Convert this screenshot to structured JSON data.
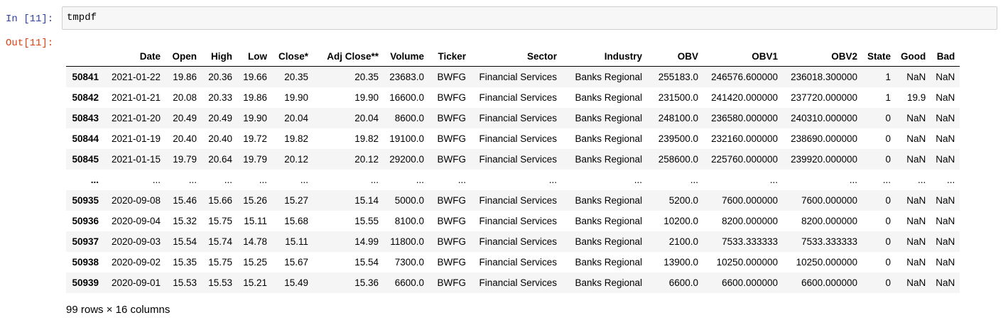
{
  "cell": {
    "in_prompt": "In [11]:",
    "out_prompt": "Out[11]:",
    "code": "tmpdf"
  },
  "dataframe": {
    "columns": [
      "",
      "Date",
      "Open",
      "High",
      "Low",
      "Close*",
      "Adj Close**",
      "Volume",
      "Ticker",
      "Sector",
      "Industry",
      "OBV",
      "OBV1",
      "OBV2",
      "State",
      "Good",
      "Bad"
    ],
    "rows": [
      [
        "50841",
        "2021-01-22",
        "19.86",
        "20.36",
        "19.66",
        "20.35",
        "20.35",
        "23683.0",
        "BWFG",
        "Financial Services",
        "Banks Regional",
        "255183.0",
        "246576.600000",
        "236018.300000",
        "1",
        "NaN",
        "NaN"
      ],
      [
        "50842",
        "2021-01-21",
        "20.08",
        "20.33",
        "19.86",
        "19.90",
        "19.90",
        "16600.0",
        "BWFG",
        "Financial Services",
        "Banks Regional",
        "231500.0",
        "241420.000000",
        "237720.000000",
        "1",
        "19.9",
        "NaN"
      ],
      [
        "50843",
        "2021-01-20",
        "20.49",
        "20.49",
        "19.90",
        "20.04",
        "20.04",
        "8600.0",
        "BWFG",
        "Financial Services",
        "Banks Regional",
        "248100.0",
        "236580.000000",
        "240310.000000",
        "0",
        "NaN",
        "NaN"
      ],
      [
        "50844",
        "2021-01-19",
        "20.40",
        "20.40",
        "19.72",
        "19.82",
        "19.82",
        "19100.0",
        "BWFG",
        "Financial Services",
        "Banks Regional",
        "239500.0",
        "232160.000000",
        "238690.000000",
        "0",
        "NaN",
        "NaN"
      ],
      [
        "50845",
        "2021-01-15",
        "19.79",
        "20.64",
        "19.79",
        "20.12",
        "20.12",
        "29200.0",
        "BWFG",
        "Financial Services",
        "Banks Regional",
        "258600.0",
        "225760.000000",
        "239920.000000",
        "0",
        "NaN",
        "NaN"
      ],
      [
        "...",
        "...",
        "...",
        "...",
        "...",
        "...",
        "...",
        "...",
        "...",
        "...",
        "...",
        "...",
        "...",
        "...",
        "...",
        "...",
        "..."
      ],
      [
        "50935",
        "2020-09-08",
        "15.46",
        "15.66",
        "15.26",
        "15.27",
        "15.14",
        "5000.0",
        "BWFG",
        "Financial Services",
        "Banks Regional",
        "5200.0",
        "7600.000000",
        "7600.000000",
        "0",
        "NaN",
        "NaN"
      ],
      [
        "50936",
        "2020-09-04",
        "15.32",
        "15.75",
        "15.11",
        "15.68",
        "15.55",
        "8100.0",
        "BWFG",
        "Financial Services",
        "Banks Regional",
        "10200.0",
        "8200.000000",
        "8200.000000",
        "0",
        "NaN",
        "NaN"
      ],
      [
        "50937",
        "2020-09-03",
        "15.54",
        "15.74",
        "14.78",
        "15.11",
        "14.99",
        "11800.0",
        "BWFG",
        "Financial Services",
        "Banks Regional",
        "2100.0",
        "7533.333333",
        "7533.333333",
        "0",
        "NaN",
        "NaN"
      ],
      [
        "50938",
        "2020-09-02",
        "15.35",
        "15.75",
        "15.25",
        "15.67",
        "15.54",
        "7300.0",
        "BWFG",
        "Financial Services",
        "Banks Regional",
        "13900.0",
        "10250.000000",
        "10250.000000",
        "0",
        "NaN",
        "NaN"
      ],
      [
        "50939",
        "2020-09-01",
        "15.53",
        "15.53",
        "15.21",
        "15.49",
        "15.36",
        "6600.0",
        "BWFG",
        "Financial Services",
        "Banks Regional",
        "6600.0",
        "6600.000000",
        "6600.000000",
        "0",
        "NaN",
        "NaN"
      ]
    ],
    "shape_text": "99 rows × 16 columns"
  },
  "colors": {
    "in_prompt": "#303f9f",
    "out_prompt": "#d84315",
    "stripe": "#f5f5f5"
  }
}
